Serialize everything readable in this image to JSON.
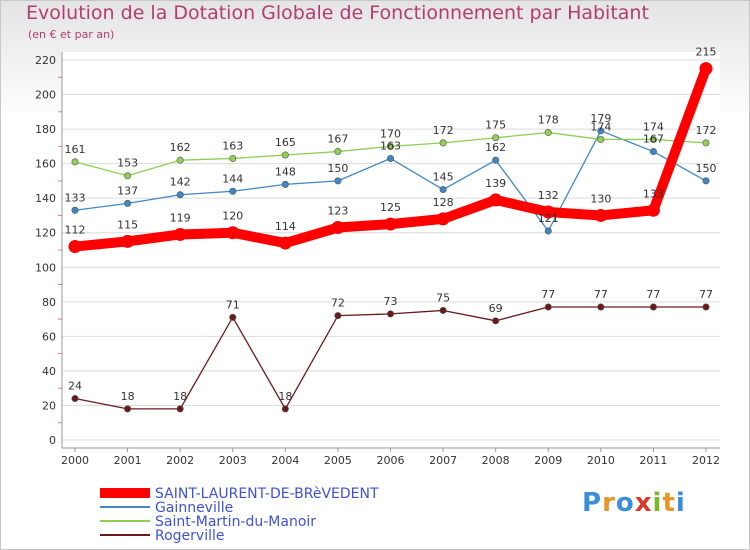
{
  "title": "Evolution de la Dotation Globale de Fonctionnement par Habitant",
  "subtitle": "(en € et par an)",
  "brand": {
    "letters": [
      "P",
      "r",
      "o",
      "x",
      "i",
      "t",
      "i"
    ],
    "colors": [
      "#3a8fd8",
      "#e8962a",
      "#3a8fd8",
      "#d83a2a",
      "#7ab82a",
      "#e8962a",
      "#3a8fd8"
    ]
  },
  "chart_data": {
    "type": "line",
    "title": "Evolution de la Dotation Globale de Fonctionnement par Habitant",
    "ylabel": "(en € et par an)",
    "xlabel": "",
    "x": [
      "2000",
      "2001",
      "2002",
      "2003",
      "2004",
      "2005",
      "2006",
      "2007",
      "2008",
      "2009",
      "2010",
      "2011",
      "2012"
    ],
    "ylim": [
      0,
      220
    ],
    "yticks": [
      0,
      20,
      40,
      60,
      80,
      100,
      120,
      140,
      160,
      180,
      200,
      220
    ],
    "grid": true,
    "legend_position": "bottom-left",
    "series": [
      {
        "name": "SAINT-LAURENT-DE-BRèVEDENT",
        "color": "#ff0000",
        "emphasis": true,
        "values": [
          112,
          115,
          119,
          120,
          114,
          123,
          125,
          128,
          139,
          132,
          130,
          133,
          215
        ],
        "labels": [
          "112",
          "115",
          "119",
          "120",
          "114",
          "123",
          "125",
          "128",
          "139",
          "132",
          "130",
          "133",
          "215"
        ]
      },
      {
        "name": "Gainneville",
        "color": "#3f87c6",
        "emphasis": false,
        "values": [
          133,
          137,
          142,
          144,
          148,
          150,
          163,
          145,
          162,
          121,
          179,
          167,
          150
        ],
        "labels": [
          "133",
          "137",
          "142",
          "144",
          "148",
          "150",
          "163",
          "145",
          "162",
          "121",
          "179",
          "167",
          "150"
        ]
      },
      {
        "name": "Saint-Martin-du-Manoir",
        "color": "#8ed055",
        "emphasis": false,
        "values": [
          161,
          153,
          162,
          163,
          165,
          167,
          170,
          172,
          175,
          178,
          174,
          174,
          172
        ],
        "labels": [
          "161",
          "153",
          "162",
          "163",
          "165",
          "167",
          "170",
          "172",
          "175",
          "178",
          "174",
          "174",
          "172"
        ]
      },
      {
        "name": "Rogerville",
        "color": "#6b1a1a",
        "emphasis": false,
        "values": [
          24,
          18,
          18,
          71,
          18,
          72,
          73,
          75,
          69,
          77,
          77,
          77,
          77
        ],
        "labels": [
          "24",
          "18",
          "18",
          "71",
          "18",
          "72",
          "73",
          "75",
          "69",
          "77",
          "77",
          "77",
          "77"
        ]
      }
    ]
  }
}
